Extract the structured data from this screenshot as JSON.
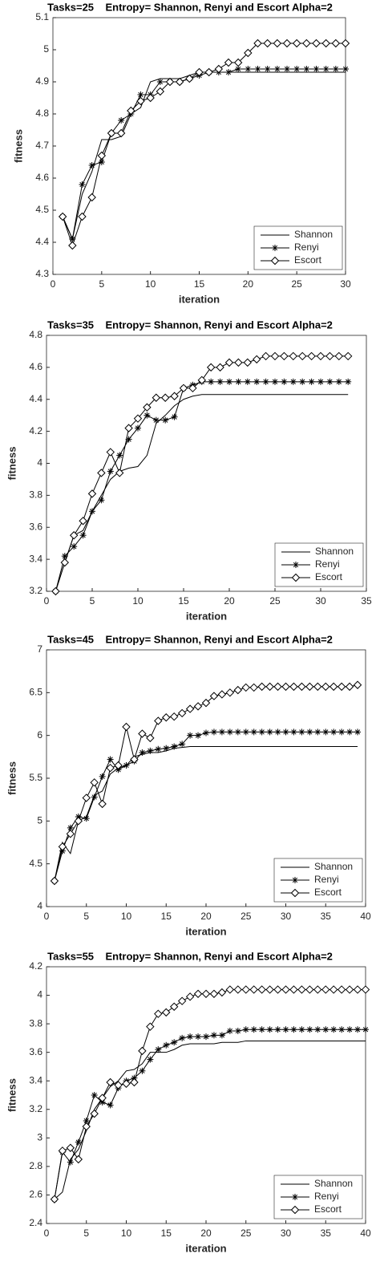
{
  "chart_data": [
    {
      "type": "line",
      "title": "Tasks=25    Entropy= Shannon, Renyi and Escort Alpha=2",
      "x_label": "iteration",
      "y_label": "fitness",
      "x": [
        1,
        2,
        3,
        4,
        5,
        6,
        7,
        8,
        9,
        10,
        11,
        12,
        13,
        14,
        15,
        16,
        17,
        18,
        19,
        20,
        21,
        22,
        23,
        24,
        25,
        26,
        27,
        28,
        29,
        30
      ],
      "series": [
        {
          "name": "Shannon",
          "color": "#000000",
          "marker": "none",
          "values": [
            4.48,
            4.41,
            4.55,
            4.62,
            4.72,
            4.72,
            4.73,
            4.8,
            4.82,
            4.9,
            4.91,
            4.91,
            4.91,
            4.92,
            4.93,
            4.93,
            4.93,
            4.93,
            4.93,
            4.93,
            4.93,
            4.93,
            4.93,
            4.93,
            4.93,
            4.93,
            4.93,
            4.93,
            4.93,
            4.93
          ]
        },
        {
          "name": "Renyi",
          "color": "#000000",
          "marker": "asterisk",
          "values": [
            4.48,
            4.41,
            4.58,
            4.64,
            4.65,
            4.74,
            4.78,
            4.8,
            4.86,
            4.86,
            4.9,
            4.9,
            4.9,
            4.91,
            4.92,
            4.93,
            4.93,
            4.93,
            4.94,
            4.94,
            4.94,
            4.94,
            4.94,
            4.94,
            4.94,
            4.94,
            4.94,
            4.94,
            4.94,
            4.94
          ]
        },
        {
          "name": "Escort",
          "color": "#000000",
          "marker": "diamond",
          "values": [
            4.48,
            4.39,
            4.48,
            4.54,
            4.67,
            4.74,
            4.74,
            4.81,
            4.84,
            4.85,
            4.87,
            4.9,
            4.9,
            4.91,
            4.93,
            4.93,
            4.94,
            4.96,
            4.96,
            4.99,
            5.02,
            5.02,
            5.02,
            5.02,
            5.02,
            5.02,
            5.02,
            5.02,
            5.02,
            5.02
          ]
        }
      ],
      "xlim": [
        0,
        30
      ],
      "xticks": [
        0,
        5,
        10,
        15,
        20,
        25,
        30
      ],
      "ylim": [
        4.3,
        5.1
      ],
      "yticks": [
        4.3,
        4.4,
        4.5,
        4.6,
        4.7,
        4.8,
        4.9,
        5,
        5.1
      ],
      "grid": false,
      "legend": "lower right"
    },
    {
      "type": "line",
      "title": "Tasks=35    Entropy= Shannon, Renyi and Escort Alpha=2",
      "x_label": "iteration",
      "y_label": "fitness",
      "x": [
        1,
        2,
        3,
        4,
        5,
        6,
        7,
        8,
        9,
        10,
        11,
        12,
        13,
        14,
        15,
        16,
        17,
        18,
        19,
        20,
        21,
        22,
        23,
        24,
        25,
        26,
        27,
        28,
        29,
        30,
        31,
        32,
        33
      ],
      "series": [
        {
          "name": "Shannon",
          "color": "#000000",
          "marker": "none",
          "values": [
            3.2,
            3.38,
            3.55,
            3.58,
            3.7,
            3.8,
            3.9,
            3.95,
            3.97,
            3.98,
            4.05,
            4.25,
            4.3,
            4.36,
            4.4,
            4.42,
            4.43,
            4.43,
            4.43,
            4.43,
            4.43,
            4.43,
            4.43,
            4.43,
            4.43,
            4.43,
            4.43,
            4.43,
            4.43,
            4.43,
            4.43,
            4.43,
            4.43
          ]
        },
        {
          "name": "Renyi",
          "color": "#000000",
          "marker": "asterisk",
          "values": [
            3.2,
            3.42,
            3.48,
            3.55,
            3.7,
            3.77,
            3.95,
            4.05,
            4.15,
            4.22,
            4.3,
            4.27,
            4.27,
            4.29,
            4.47,
            4.49,
            4.51,
            4.51,
            4.51,
            4.51,
            4.51,
            4.51,
            4.51,
            4.51,
            4.51,
            4.51,
            4.51,
            4.51,
            4.51,
            4.51,
            4.51,
            4.51,
            4.51
          ]
        },
        {
          "name": "Escort",
          "color": "#000000",
          "marker": "diamond",
          "values": [
            3.2,
            3.38,
            3.55,
            3.64,
            3.81,
            3.94,
            4.07,
            3.94,
            4.22,
            4.28,
            4.35,
            4.41,
            4.41,
            4.42,
            4.47,
            4.47,
            4.52,
            4.6,
            4.6,
            4.63,
            4.63,
            4.63,
            4.65,
            4.67,
            4.67,
            4.67,
            4.67,
            4.67,
            4.67,
            4.67,
            4.67,
            4.67,
            4.67
          ]
        }
      ],
      "xlim": [
        0,
        35
      ],
      "xticks": [
        0,
        5,
        10,
        15,
        20,
        25,
        30,
        35
      ],
      "ylim": [
        3.2,
        4.8
      ],
      "yticks": [
        3.2,
        3.4,
        3.6,
        3.8,
        4,
        4.2,
        4.4,
        4.6,
        4.8
      ],
      "grid": false,
      "legend": "lower right"
    },
    {
      "type": "line",
      "title": "Tasks=45    Entropy= Shannon, Renyi and Escort Alpha=2",
      "x_label": "iteration",
      "y_label": "fitness",
      "x": [
        1,
        2,
        3,
        4,
        5,
        6,
        7,
        8,
        9,
        10,
        11,
        12,
        13,
        14,
        15,
        16,
        17,
        18,
        19,
        20,
        21,
        22,
        23,
        24,
        25,
        26,
        27,
        28,
        29,
        30,
        31,
        32,
        33,
        34,
        35,
        36,
        37,
        38,
        39
      ],
      "series": [
        {
          "name": "Shannon",
          "color": "#000000",
          "marker": "none",
          "values": [
            4.3,
            4.75,
            4.62,
            5.0,
            5.05,
            5.3,
            5.35,
            5.55,
            5.62,
            5.65,
            5.75,
            5.78,
            5.8,
            5.8,
            5.82,
            5.85,
            5.86,
            5.87,
            5.87,
            5.87,
            5.87,
            5.87,
            5.87,
            5.87,
            5.87,
            5.87,
            5.87,
            5.87,
            5.87,
            5.87,
            5.87,
            5.87,
            5.87,
            5.87,
            5.87,
            5.87,
            5.87,
            5.87,
            5.87
          ]
        },
        {
          "name": "Renyi",
          "color": "#000000",
          "marker": "asterisk",
          "values": [
            4.3,
            4.65,
            4.92,
            5.05,
            5.03,
            5.28,
            5.52,
            5.72,
            5.6,
            5.65,
            5.7,
            5.8,
            5.82,
            5.84,
            5.85,
            5.87,
            5.9,
            6.0,
            6.0,
            6.03,
            6.04,
            6.04,
            6.04,
            6.04,
            6.04,
            6.04,
            6.04,
            6.04,
            6.04,
            6.04,
            6.04,
            6.04,
            6.04,
            6.04,
            6.04,
            6.04,
            6.04,
            6.04,
            6.04
          ]
        },
        {
          "name": "Escort",
          "color": "#000000",
          "marker": "diamond",
          "values": [
            4.3,
            4.7,
            4.85,
            5.0,
            5.27,
            5.45,
            5.2,
            5.62,
            5.65,
            6.1,
            5.72,
            6.02,
            5.97,
            6.17,
            6.21,
            6.22,
            6.26,
            6.31,
            6.34,
            6.38,
            6.46,
            6.48,
            6.5,
            6.53,
            6.56,
            6.56,
            6.57,
            6.57,
            6.57,
            6.57,
            6.57,
            6.57,
            6.57,
            6.57,
            6.57,
            6.57,
            6.57,
            6.57,
            6.59
          ]
        }
      ],
      "xlim": [
        0,
        40
      ],
      "xticks": [
        0,
        5,
        10,
        15,
        20,
        25,
        30,
        35,
        40
      ],
      "ylim": [
        4,
        7
      ],
      "yticks": [
        4,
        4.5,
        5,
        5.5,
        6,
        6.5,
        7
      ],
      "grid": false,
      "legend": "lower right"
    },
    {
      "type": "line",
      "title": "Tasks=55    Entropy= Shannon, Renyi and Escort Alpha=2",
      "x_label": "iteration",
      "y_label": "fitness",
      "x": [
        1,
        2,
        3,
        4,
        5,
        6,
        7,
        8,
        9,
        10,
        11,
        12,
        13,
        14,
        15,
        16,
        17,
        18,
        19,
        20,
        21,
        22,
        23,
        24,
        25,
        26,
        27,
        28,
        29,
        30,
        31,
        32,
        33,
        34,
        35,
        36,
        37,
        38,
        39,
        40
      ],
      "series": [
        {
          "name": "Shannon",
          "color": "#000000",
          "marker": "none",
          "values": [
            2.57,
            2.62,
            2.85,
            2.92,
            3.05,
            3.2,
            3.28,
            3.36,
            3.4,
            3.47,
            3.48,
            3.52,
            3.6,
            3.6,
            3.6,
            3.62,
            3.65,
            3.66,
            3.66,
            3.66,
            3.66,
            3.67,
            3.67,
            3.67,
            3.68,
            3.68,
            3.68,
            3.68,
            3.68,
            3.68,
            3.68,
            3.68,
            3.68,
            3.68,
            3.68,
            3.68,
            3.68,
            3.68,
            3.68,
            3.68
          ]
        },
        {
          "name": "Renyi",
          "color": "#000000",
          "marker": "asterisk",
          "values": [
            2.57,
            2.9,
            2.83,
            2.97,
            3.12,
            3.3,
            3.25,
            3.23,
            3.35,
            3.4,
            3.42,
            3.47,
            3.55,
            3.62,
            3.65,
            3.67,
            3.7,
            3.71,
            3.71,
            3.71,
            3.72,
            3.72,
            3.75,
            3.75,
            3.76,
            3.76,
            3.76,
            3.76,
            3.76,
            3.76,
            3.76,
            3.76,
            3.76,
            3.76,
            3.76,
            3.76,
            3.76,
            3.76,
            3.76,
            3.76
          ]
        },
        {
          "name": "Escort",
          "color": "#000000",
          "marker": "diamond",
          "values": [
            2.57,
            2.91,
            2.93,
            2.85,
            3.08,
            3.17,
            3.28,
            3.39,
            3.37,
            3.38,
            3.39,
            3.61,
            3.78,
            3.87,
            3.88,
            3.92,
            3.96,
            3.99,
            4.01,
            4.01,
            4.01,
            4.02,
            4.04,
            4.04,
            4.04,
            4.04,
            4.04,
            4.04,
            4.04,
            4.04,
            4.04,
            4.04,
            4.04,
            4.04,
            4.04,
            4.04,
            4.04,
            4.04,
            4.04,
            4.04
          ]
        }
      ],
      "xlim": [
        0,
        40
      ],
      "xticks": [
        0,
        5,
        10,
        15,
        20,
        25,
        30,
        35,
        40
      ],
      "ylim": [
        2.4,
        4.2
      ],
      "yticks": [
        2.4,
        2.6,
        2.8,
        3,
        3.2,
        3.4,
        3.6,
        3.8,
        4,
        4.2
      ],
      "grid": false,
      "legend": "lower right"
    }
  ]
}
